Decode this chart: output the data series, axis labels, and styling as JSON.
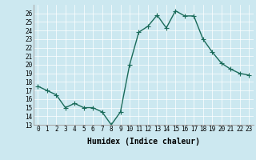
{
  "x": [
    0,
    1,
    2,
    3,
    4,
    5,
    6,
    7,
    8,
    9,
    10,
    11,
    12,
    13,
    14,
    15,
    16,
    17,
    18,
    19,
    20,
    21,
    22,
    23
  ],
  "y": [
    17.5,
    17.0,
    16.5,
    15.0,
    15.5,
    15.0,
    15.0,
    14.5,
    13.0,
    14.5,
    20.0,
    23.8,
    24.5,
    25.8,
    24.3,
    26.3,
    25.7,
    25.7,
    23.0,
    21.5,
    20.2,
    19.5,
    19.0,
    18.8
  ],
  "line_color": "#1a6b5a",
  "marker": "+",
  "marker_size": 4,
  "linewidth": 1.0,
  "xlabel": "Humidex (Indice chaleur)",
  "xlabel_fontsize": 7,
  "ylim": [
    13,
    27
  ],
  "xlim": [
    -0.5,
    23.5
  ],
  "yticks": [
    13,
    14,
    15,
    16,
    17,
    18,
    19,
    20,
    21,
    22,
    23,
    24,
    25,
    26
  ],
  "xticks": [
    0,
    1,
    2,
    3,
    4,
    5,
    6,
    7,
    8,
    9,
    10,
    11,
    12,
    13,
    14,
    15,
    16,
    17,
    18,
    19,
    20,
    21,
    22,
    23
  ],
  "bg_color": "#cce8f0",
  "grid_color": "#ffffff",
  "tick_fontsize": 5.5,
  "fig_width": 3.2,
  "fig_height": 2.0,
  "dpi": 100
}
